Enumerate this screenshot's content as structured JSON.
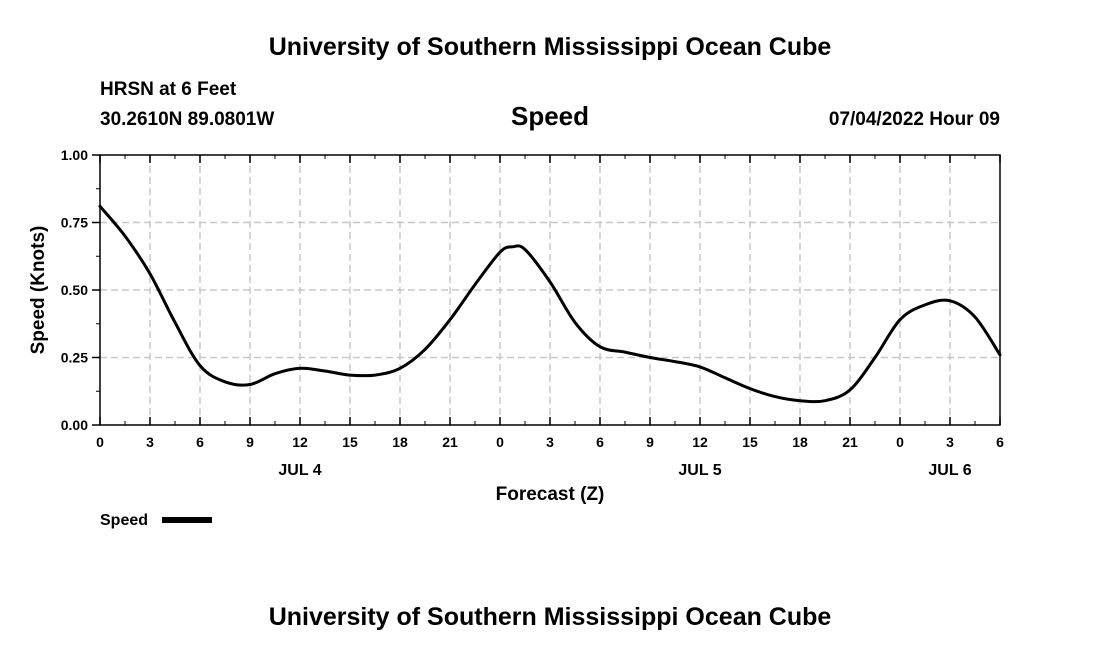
{
  "header": {
    "title_top": "University of Southern Mississippi Ocean Cube",
    "title_bottom": "University of Southern Mississippi Ocean Cube",
    "station": "HRSN at 6 Feet",
    "coords": "30.2610N  89.0801W",
    "chart_title": "Speed",
    "timestamp": "07/04/2022 Hour 09"
  },
  "legend": {
    "label": "Speed"
  },
  "colors": {
    "line": "#000000",
    "grid": "#c8c8c8",
    "axis": "#000000"
  },
  "chart_data": {
    "type": "line",
    "title": "Speed",
    "xlabel": "Forecast (Z)",
    "ylabel": "Speed (Knots)",
    "xlim": [
      0,
      54
    ],
    "ylim": [
      0,
      1
    ],
    "x_ticks": [
      0,
      3,
      6,
      9,
      12,
      15,
      18,
      21,
      24,
      27,
      30,
      33,
      36,
      39,
      42,
      45,
      48,
      51,
      54
    ],
    "x_tick_labels": [
      "0",
      "3",
      "6",
      "9",
      "12",
      "15",
      "18",
      "21",
      "0",
      "3",
      "6",
      "9",
      "12",
      "15",
      "18",
      "21",
      "0",
      "3",
      "6"
    ],
    "y_ticks": [
      0,
      0.25,
      0.5,
      0.75,
      1
    ],
    "y_tick_labels": [
      "0.00",
      "0.25",
      "0.50",
      "0.75",
      "1.00"
    ],
    "date_labels": [
      {
        "x": 12,
        "label": "JUL 4"
      },
      {
        "x": 36,
        "label": "JUL 5"
      },
      {
        "x": 51,
        "label": "JUL 6"
      }
    ],
    "grid": true,
    "legend_position": "bottom-left",
    "series": [
      {
        "name": "Speed",
        "x": [
          0,
          1.5,
          3,
          4.5,
          6,
          7.5,
          9,
          10.5,
          12,
          13.5,
          15,
          16.5,
          18,
          19.5,
          21,
          22.5,
          24,
          24.75,
          25.5,
          27,
          28.5,
          30,
          31.5,
          33,
          34.5,
          36,
          37.5,
          39,
          40.5,
          42,
          43.5,
          45,
          46.5,
          48,
          49.5,
          51,
          52.5,
          54
        ],
        "values": [
          0.81,
          0.7,
          0.56,
          0.38,
          0.22,
          0.16,
          0.15,
          0.19,
          0.21,
          0.2,
          0.185,
          0.185,
          0.21,
          0.28,
          0.39,
          0.52,
          0.64,
          0.66,
          0.65,
          0.53,
          0.38,
          0.29,
          0.27,
          0.25,
          0.235,
          0.215,
          0.175,
          0.135,
          0.105,
          0.09,
          0.09,
          0.13,
          0.25,
          0.39,
          0.445,
          0.46,
          0.4,
          0.26
        ]
      }
    ]
  }
}
